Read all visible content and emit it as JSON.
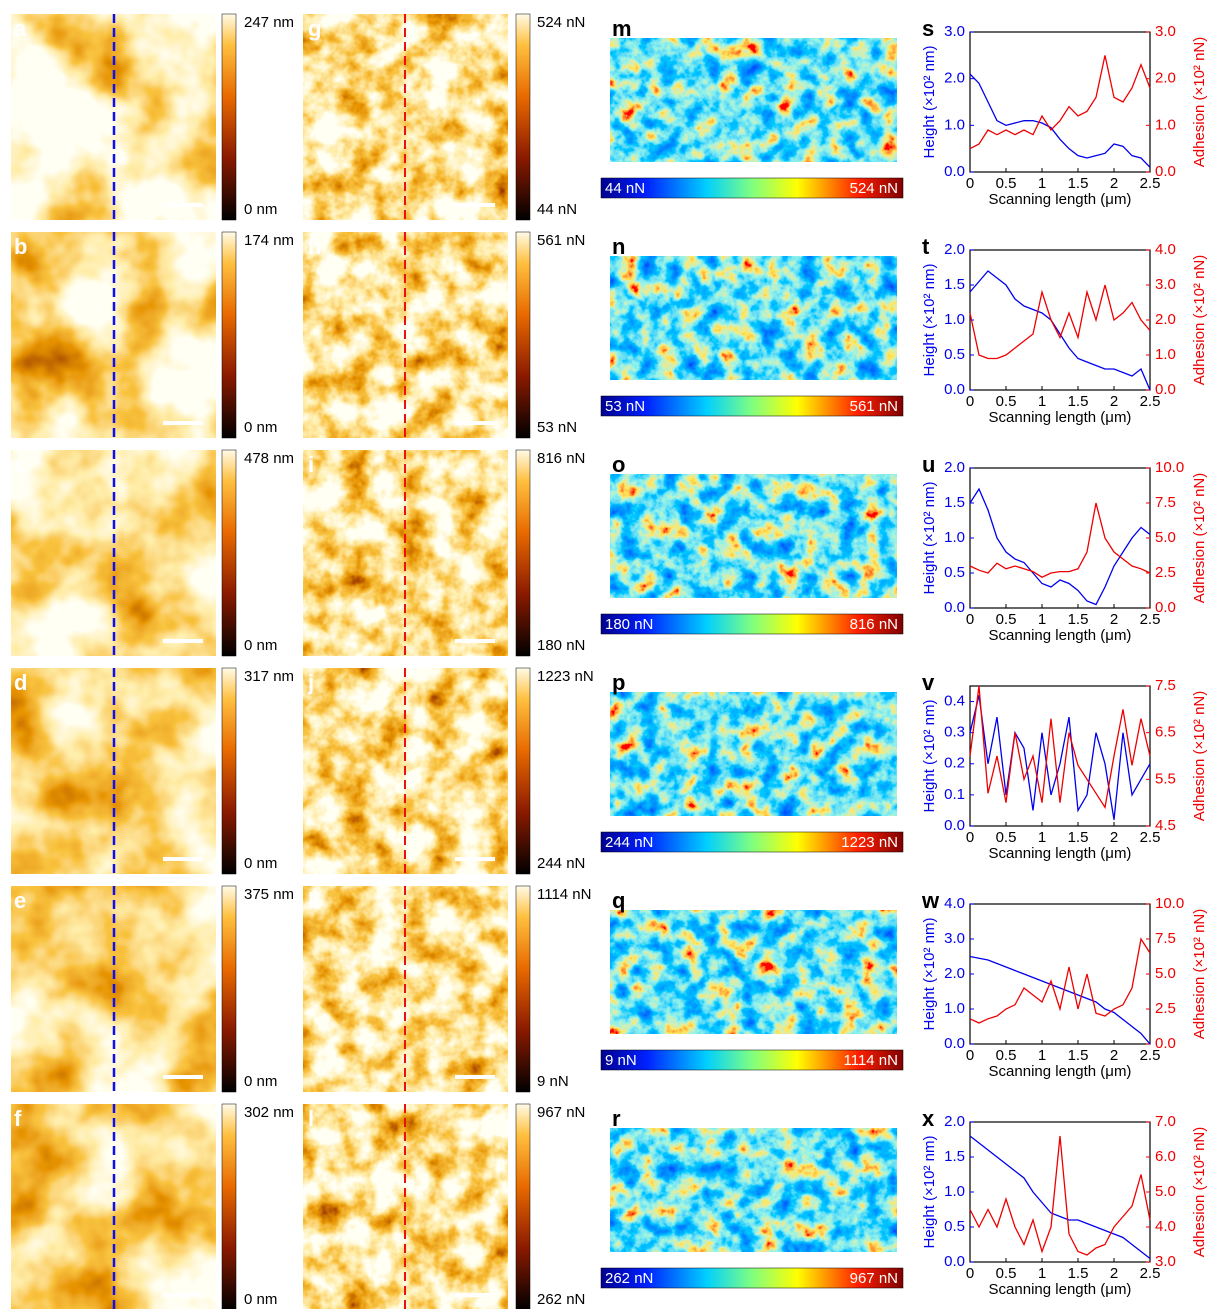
{
  "panels": [
    {
      "height_panel": "a",
      "height_max": "247 nm",
      "height_min": "0 nm",
      "adhesion_panel": "g",
      "adhesion_max": "524 nN",
      "adhesion_min": "44 nN",
      "map_panel": "m",
      "map_min": "44 nN",
      "map_max": "524 nN"
    },
    {
      "height_panel": "b",
      "height_max": "174 nm",
      "height_min": "0 nm",
      "adhesion_panel": "h",
      "adhesion_max": "561 nN",
      "adhesion_min": "53 nN",
      "map_panel": "n",
      "map_min": "53 nN",
      "map_max": "561 nN"
    },
    {
      "height_panel": "c",
      "height_max": "478 nm",
      "height_min": "0 nm",
      "adhesion_panel": "i",
      "adhesion_max": "816 nN",
      "adhesion_min": "180 nN",
      "map_panel": "o",
      "map_min": "180 nN",
      "map_max": "816 nN"
    },
    {
      "height_panel": "d",
      "height_max": "317 nm",
      "height_min": "0 nm",
      "adhesion_panel": "j",
      "adhesion_max": "1223 nN",
      "adhesion_min": "244 nN",
      "map_panel": "p",
      "map_min": "244 nN",
      "map_max": "1223 nN"
    },
    {
      "height_panel": "e",
      "height_max": "375 nm",
      "height_min": "0 nm",
      "adhesion_panel": "k",
      "adhesion_max": "1114 nN",
      "adhesion_min": "9 nN",
      "map_panel": "q",
      "map_min": "9 nN",
      "map_max": "1114 nN"
    },
    {
      "height_panel": "f",
      "height_max": "302 nm",
      "height_min": "0 nm",
      "adhesion_panel": "l",
      "adhesion_max": "967 nN",
      "adhesion_min": "262 nN",
      "map_panel": "r",
      "map_min": "262 nN",
      "map_max": "967 nN"
    }
  ],
  "chart_data": [
    {
      "type": "line",
      "label": "s",
      "x_label": "Scanning length (μm)",
      "y_label": "Height (×10² nm)",
      "y2_label": "Adhesion (×10² nN)",
      "x": [
        0,
        0.125,
        0.25,
        0.375,
        0.5,
        0.625,
        0.75,
        0.875,
        1,
        1.125,
        1.25,
        1.375,
        1.5,
        1.625,
        1.75,
        1.875,
        2,
        2.125,
        2.25,
        2.375,
        2.5
      ],
      "xlim": [
        0,
        2.5
      ],
      "xticks": [
        0,
        0.5,
        1,
        1.5,
        2,
        2.5
      ],
      "ylim": [
        0,
        3
      ],
      "yticks": [
        {
          "value": 0,
          "label": "0.0"
        },
        {
          "value": 1,
          "label": "1.0"
        },
        {
          "value": 2,
          "label": "2.0"
        },
        {
          "value": 3,
          "label": "3.0"
        }
      ],
      "y2lim": [
        0,
        3
      ],
      "y2ticks": [
        {
          "value": 0,
          "label": "0.0"
        },
        {
          "value": 1,
          "label": "1.0"
        },
        {
          "value": 2,
          "label": "2.0"
        },
        {
          "value": 3,
          "label": "3.0"
        }
      ],
      "series": [
        {
          "color": "#0000ee",
          "values": [
            2.1,
            1.9,
            1.5,
            1.1,
            1.0,
            1.05,
            1.1,
            1.1,
            1.05,
            0.95,
            0.7,
            0.5,
            0.35,
            0.3,
            0.35,
            0.4,
            0.6,
            0.55,
            0.35,
            0.3,
            0.1
          ]
        },
        {
          "color": "#ee0000",
          "axis": "y2",
          "values": [
            0.5,
            0.6,
            0.9,
            0.8,
            0.9,
            0.8,
            0.9,
            0.8,
            1.2,
            0.9,
            1.1,
            1.4,
            1.2,
            1.3,
            1.6,
            2.5,
            1.6,
            1.5,
            1.8,
            2.3,
            1.8
          ]
        }
      ]
    },
    {
      "type": "line",
      "label": "t",
      "x_label": "Scanning length (μm)",
      "y_label": "Height (×10² nm)",
      "y2_label": "Adhesion (×10² nN)",
      "x": [
        0,
        0.125,
        0.25,
        0.375,
        0.5,
        0.625,
        0.75,
        0.875,
        1,
        1.125,
        1.25,
        1.375,
        1.5,
        1.625,
        1.75,
        1.875,
        2,
        2.125,
        2.25,
        2.375,
        2.5
      ],
      "xlim": [
        0,
        2.5
      ],
      "xticks": [
        0,
        0.5,
        1,
        1.5,
        2,
        2.5
      ],
      "ylim": [
        0,
        2
      ],
      "yticks": [
        {
          "value": 0,
          "label": "0.0"
        },
        0.5,
        {
          "value": 1,
          "label": "1.0"
        },
        1.5,
        {
          "value": 2,
          "label": "2.0"
        }
      ],
      "y2lim": [
        0,
        4
      ],
      "y2ticks": [
        {
          "value": 0,
          "label": "0.0"
        },
        {
          "value": 1,
          "label": "1.0"
        },
        {
          "value": 2,
          "label": "2.0"
        },
        {
          "value": 3,
          "label": "3.0"
        },
        {
          "value": 4,
          "label": "4.0"
        }
      ],
      "series": [
        {
          "color": "#0000ee",
          "values": [
            1.4,
            1.55,
            1.7,
            1.6,
            1.5,
            1.3,
            1.2,
            1.15,
            1.1,
            1.0,
            0.8,
            0.6,
            0.45,
            0.4,
            0.35,
            0.3,
            0.3,
            0.25,
            0.2,
            0.3,
            0.0
          ]
        },
        {
          "color": "#ee0000",
          "axis": "y2",
          "values": [
            2.2,
            1.0,
            0.9,
            0.9,
            1.0,
            1.2,
            1.4,
            1.6,
            2.8,
            2.0,
            1.5,
            2.2,
            1.5,
            2.8,
            2.0,
            3.0,
            2.0,
            2.2,
            2.5,
            2.0,
            1.7
          ]
        }
      ]
    },
    {
      "type": "line",
      "label": "u",
      "x_label": "Scanning length (μm)",
      "y_label": "Height (×10² nm)",
      "y2_label": "Adhesion (×10² nN)",
      "x": [
        0,
        0.125,
        0.25,
        0.375,
        0.5,
        0.625,
        0.75,
        0.875,
        1,
        1.125,
        1.25,
        1.375,
        1.5,
        1.625,
        1.75,
        1.875,
        2,
        2.125,
        2.25,
        2.375,
        2.5
      ],
      "xlim": [
        0,
        2.5
      ],
      "xticks": [
        0,
        0.5,
        1,
        1.5,
        2,
        2.5
      ],
      "ylim": [
        0,
        2
      ],
      "yticks": [
        {
          "value": 0,
          "label": "0.0"
        },
        0.5,
        {
          "value": 1,
          "label": "1.0"
        },
        1.5,
        {
          "value": 2,
          "label": "2.0"
        }
      ],
      "y2lim": [
        0,
        10
      ],
      "y2ticks": [
        {
          "value": 0,
          "label": "0.0"
        },
        2.5,
        {
          "value": 5,
          "label": "5.0"
        },
        7.5,
        {
          "value": 10,
          "label": "10.0"
        }
      ],
      "series": [
        {
          "color": "#0000ee",
          "values": [
            1.5,
            1.7,
            1.4,
            1.0,
            0.8,
            0.7,
            0.65,
            0.5,
            0.35,
            0.3,
            0.4,
            0.35,
            0.25,
            0.1,
            0.05,
            0.3,
            0.6,
            0.8,
            1.0,
            1.15,
            1.05
          ]
        },
        {
          "color": "#ee0000",
          "axis": "y2",
          "values": [
            3.0,
            2.7,
            2.5,
            3.2,
            2.8,
            3.0,
            2.8,
            2.6,
            2.2,
            2.5,
            2.6,
            2.6,
            2.8,
            4.0,
            7.5,
            5.0,
            4.0,
            3.5,
            3.0,
            2.8,
            2.5
          ]
        }
      ]
    },
    {
      "type": "line",
      "label": "v",
      "x_label": "Scanning length (μm)",
      "y_label": "Height (×10² nm)",
      "y2_label": "Adhesion (×10² nN)",
      "x": [
        0,
        0.125,
        0.25,
        0.375,
        0.5,
        0.625,
        0.75,
        0.875,
        1,
        1.125,
        1.25,
        1.375,
        1.5,
        1.625,
        1.75,
        1.875,
        2,
        2.125,
        2.25,
        2.375,
        2.5
      ],
      "xlim": [
        0,
        2.5
      ],
      "xticks": [
        0,
        0.5,
        1,
        1.5,
        2,
        2.5
      ],
      "ylim": [
        0,
        0.45
      ],
      "yticks": [
        {
          "value": 0,
          "label": "0.0"
        },
        0.1,
        0.2,
        0.3,
        0.4
      ],
      "y2lim": [
        4.5,
        7.5
      ],
      "y2ticks": [
        4.5,
        5.5,
        6.5,
        7.5
      ],
      "series": [
        {
          "color": "#0000ee",
          "values": [
            0.3,
            0.42,
            0.2,
            0.35,
            0.1,
            0.3,
            0.25,
            0.05,
            0.3,
            0.1,
            0.2,
            0.35,
            0.05,
            0.1,
            0.3,
            0.2,
            0.02,
            0.3,
            0.1,
            0.15,
            0.2
          ]
        },
        {
          "color": "#ee0000",
          "axis": "y2",
          "values": [
            6.0,
            7.5,
            5.2,
            6.0,
            5.0,
            6.5,
            5.5,
            6.0,
            5.0,
            6.8,
            5.0,
            6.5,
            5.8,
            5.5,
            5.2,
            4.9,
            6.0,
            7.0,
            5.8,
            6.8,
            6.0
          ]
        }
      ]
    },
    {
      "type": "line",
      "label": "w",
      "x_label": "Scanning length (μm)",
      "y_label": "Height (×10² nm)",
      "y2_label": "Adhesion (×10² nN)",
      "x": [
        0,
        0.125,
        0.25,
        0.375,
        0.5,
        0.625,
        0.75,
        0.875,
        1,
        1.125,
        1.25,
        1.375,
        1.5,
        1.625,
        1.75,
        1.875,
        2,
        2.125,
        2.25,
        2.375,
        2.5
      ],
      "xlim": [
        0,
        2.5
      ],
      "xticks": [
        0,
        0.5,
        1,
        1.5,
        2,
        2.5
      ],
      "ylim": [
        0,
        4
      ],
      "yticks": [
        {
          "value": 0,
          "label": "0.0"
        },
        {
          "value": 1,
          "label": "1.0"
        },
        {
          "value": 2,
          "label": "2.0"
        },
        {
          "value": 3,
          "label": "3.0"
        },
        {
          "value": 4,
          "label": "4.0"
        }
      ],
      "y2lim": [
        0,
        10
      ],
      "y2ticks": [
        {
          "value": 0,
          "label": "0.0"
        },
        2.5,
        {
          "value": 5,
          "label": "5.0"
        },
        7.5,
        {
          "value": 10,
          "label": "10.0"
        }
      ],
      "series": [
        {
          "color": "#0000ee",
          "values": [
            2.5,
            2.45,
            2.4,
            2.3,
            2.2,
            2.1,
            2.0,
            1.9,
            1.8,
            1.7,
            1.6,
            1.5,
            1.4,
            1.3,
            1.2,
            1.0,
            0.9,
            0.7,
            0.5,
            0.3,
            0.0
          ]
        },
        {
          "color": "#ee0000",
          "axis": "y2",
          "values": [
            1.8,
            1.5,
            1.8,
            2.0,
            2.5,
            2.8,
            4.0,
            3.5,
            3.0,
            4.5,
            2.5,
            5.5,
            2.5,
            5.0,
            2.2,
            2.0,
            2.5,
            2.8,
            4.0,
            7.5,
            6.5
          ]
        }
      ]
    },
    {
      "type": "line",
      "label": "x",
      "x_label": "Scanning length (μm)",
      "y_label": "Height (×10² nm)",
      "y2_label": "Adhesion (×10² nN)",
      "x": [
        0,
        0.125,
        0.25,
        0.375,
        0.5,
        0.625,
        0.75,
        0.875,
        1,
        1.125,
        1.25,
        1.375,
        1.5,
        1.625,
        1.75,
        1.875,
        2,
        2.125,
        2.25,
        2.375,
        2.5
      ],
      "xlim": [
        0,
        2.5
      ],
      "xticks": [
        0,
        0.5,
        1,
        1.5,
        2,
        2.5
      ],
      "ylim": [
        0,
        2
      ],
      "yticks": [
        {
          "value": 0,
          "label": "0.0"
        },
        0.5,
        {
          "value": 1,
          "label": "1.0"
        },
        1.5,
        {
          "value": 2,
          "label": "2.0"
        }
      ],
      "y2lim": [
        3,
        7
      ],
      "y2ticks": [
        {
          "value": 3,
          "label": "3.0"
        },
        {
          "value": 4,
          "label": "4.0"
        },
        {
          "value": 5,
          "label": "5.0"
        },
        {
          "value": 6,
          "label": "6.0"
        },
        {
          "value": 7,
          "label": "7.0"
        }
      ],
      "series": [
        {
          "color": "#0000ee",
          "values": [
            1.8,
            1.7,
            1.6,
            1.5,
            1.4,
            1.3,
            1.2,
            1.0,
            0.85,
            0.7,
            0.65,
            0.6,
            0.6,
            0.55,
            0.5,
            0.45,
            0.4,
            0.35,
            0.25,
            0.15,
            0.05
          ]
        },
        {
          "color": "#ee0000",
          "axis": "y2",
          "values": [
            4.5,
            4.0,
            4.5,
            4.0,
            4.8,
            4.0,
            3.5,
            4.2,
            3.3,
            4.0,
            6.6,
            3.8,
            3.3,
            3.2,
            3.4,
            3.5,
            4.0,
            4.3,
            4.6,
            5.5,
            4.2
          ]
        }
      ]
    }
  ]
}
